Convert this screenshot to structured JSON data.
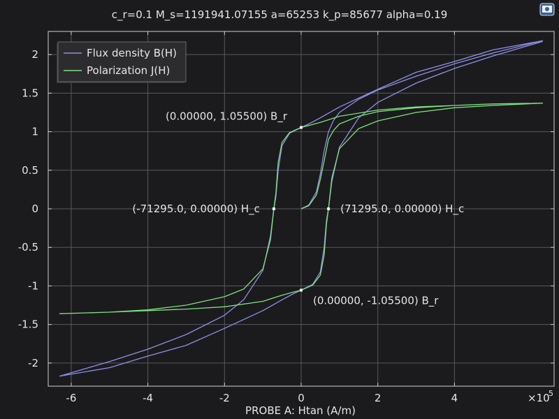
{
  "chart_data": {
    "type": "line",
    "title": "c_r=0.1 M_s=1191941.07155 a=65253 k_p=85677 alpha=0.19",
    "xlabel": "PROBE A: Htan (A/m)",
    "ylabel": "",
    "x_multiplier_label": "×10",
    "x_multiplier_exp": "5",
    "xlim": [
      -6.6,
      6.6
    ],
    "ylim": [
      -2.3,
      2.3
    ],
    "x_ticks": [
      -6,
      -4,
      -2,
      0,
      2,
      4
    ],
    "x_tick_labels": [
      "-6",
      "-4",
      "-2",
      "0",
      "2",
      "4"
    ],
    "y_ticks": [
      -2,
      -1.5,
      -1,
      -0.5,
      0,
      0.5,
      1,
      1.5,
      2
    ],
    "y_tick_labels": [
      "-2",
      "-1.5",
      "-1",
      "-0.5",
      "0",
      "0.5",
      "1",
      "1.5",
      "2"
    ],
    "grid": true,
    "legend_position": "top-left",
    "series": [
      {
        "name": "Flux density B(H)",
        "color": "#8f8fe8",
        "x": [
          0,
          0.2,
          0.4,
          0.5,
          0.6,
          0.713,
          0.85,
          1.0,
          1.5,
          2.0,
          3.0,
          4.0,
          5.0,
          6.3,
          5.0,
          4.0,
          3.0,
          2.0,
          1.0,
          0.5,
          0.2,
          0,
          -0.3,
          -0.5,
          -0.6,
          -0.66,
          -0.713,
          -0.8,
          -1.0,
          -1.5,
          -2.0,
          -3.0,
          -4.0,
          -5.0,
          -6.3,
          -5.0,
          -4.0,
          -3.0,
          -2.0,
          -1.0,
          -0.5,
          -0.2,
          0,
          0.3,
          0.5,
          0.6,
          0.66,
          0.713,
          0.8,
          1.0,
          1.5,
          2.0,
          3.0,
          4.0,
          5.0,
          6.3
        ],
        "y": [
          0,
          0.05,
          0.22,
          0.45,
          0.75,
          1.0,
          1.15,
          1.25,
          1.42,
          1.54,
          1.72,
          1.88,
          2.02,
          2.18,
          2.06,
          1.91,
          1.77,
          1.55,
          1.32,
          1.18,
          1.1,
          1.055,
          0.98,
          0.82,
          0.5,
          0.15,
          0,
          -0.35,
          -0.8,
          -1.18,
          -1.38,
          -1.63,
          -1.82,
          -1.98,
          -2.17,
          -2.06,
          -1.91,
          -1.77,
          -1.55,
          -1.32,
          -1.18,
          -1.1,
          -1.055,
          -0.98,
          -0.82,
          -0.5,
          -0.15,
          0,
          0.35,
          0.8,
          1.18,
          1.38,
          1.63,
          1.82,
          1.98,
          2.17
        ]
      },
      {
        "name": "Polarization J(H)",
        "color": "#7ee07e",
        "x": [
          0,
          0.2,
          0.4,
          0.5,
          0.6,
          0.713,
          0.85,
          1.0,
          1.5,
          2.0,
          3.0,
          4.0,
          5.0,
          6.3,
          5.0,
          4.0,
          3.0,
          2.0,
          1.0,
          0.5,
          0.2,
          0,
          -0.3,
          -0.5,
          -0.6,
          -0.66,
          -0.713,
          -0.8,
          -1.0,
          -1.5,
          -2.0,
          -3.0,
          -4.0,
          -5.0,
          -6.3,
          -5.0,
          -4.0,
          -3.0,
          -2.0,
          -1.0,
          -0.5,
          -0.2,
          0,
          0.3,
          0.5,
          0.6,
          0.66,
          0.713,
          0.8,
          1.0,
          1.5,
          2.0,
          3.0,
          4.0,
          5.0,
          6.3
        ],
        "y": [
          0,
          0.04,
          0.18,
          0.38,
          0.62,
          0.9,
          1.02,
          1.1,
          1.2,
          1.26,
          1.31,
          1.34,
          1.36,
          1.37,
          1.36,
          1.34,
          1.32,
          1.28,
          1.2,
          1.12,
          1.08,
          1.055,
          0.99,
          0.86,
          0.6,
          0.2,
          0,
          -0.4,
          -0.78,
          -1.04,
          -1.14,
          -1.25,
          -1.31,
          -1.34,
          -1.36,
          -1.34,
          -1.32,
          -1.3,
          -1.27,
          -1.2,
          -1.12,
          -1.08,
          -1.055,
          -0.99,
          -0.86,
          -0.6,
          -0.2,
          0,
          0.4,
          0.78,
          1.04,
          1.14,
          1.25,
          1.31,
          1.34,
          1.37
        ]
      }
    ],
    "annotations": [
      {
        "x": 0,
        "y": 1.055,
        "text": "(0.00000, 1.05500) B_r",
        "anchor": "end"
      },
      {
        "x": 0,
        "y": -1.055,
        "text": "(0.00000, -1.05500) B_r",
        "anchor": "start"
      },
      {
        "x": -0.713,
        "y": 0,
        "text": "(-71295.0, 0.00000) H_c",
        "anchor": "end"
      },
      {
        "x": 0.713,
        "y": 0,
        "text": "(71295.0, 0.00000) H_c",
        "anchor": "start"
      }
    ],
    "colors": {
      "background": "#1b1b1d",
      "axis": "#d0d0d0",
      "grid": "#5a5a5e",
      "legend_bg": "#2c2c2f",
      "legend_border": "#6a6a6e"
    }
  },
  "corner_icon": "window-settings-icon"
}
